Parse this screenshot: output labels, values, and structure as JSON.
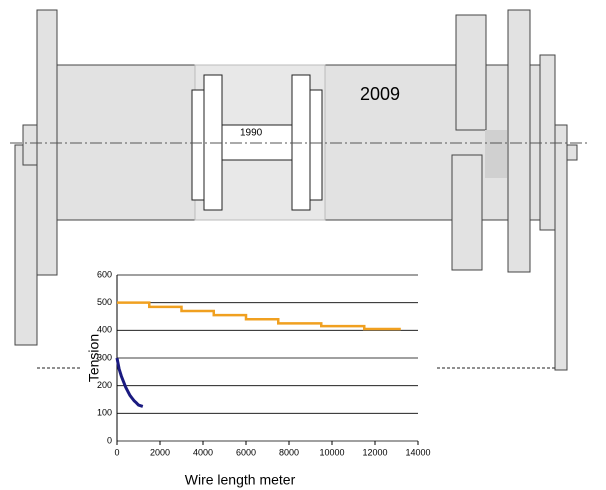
{
  "drawing": {
    "labels": [
      "2009",
      "1990"
    ]
  },
  "chart_data": {
    "type": "line",
    "x_label": "Wire length meter",
    "y_label": "Tension",
    "xlim": [
      0,
      14000
    ],
    "xticks": [
      0,
      2000,
      4000,
      6000,
      8000,
      10000,
      12000,
      14000
    ],
    "ylim": [
      0,
      600
    ],
    "yticks": [
      0,
      100,
      200,
      300,
      400,
      500,
      600
    ],
    "grid": true,
    "series": [
      {
        "color": "#f0a020",
        "x": [
          0,
          1500,
          1500,
          3000,
          3000,
          4500,
          4500,
          6000,
          6000,
          7500,
          7500,
          9500,
          9500,
          11500,
          11500,
          13200
        ],
        "values": [
          500,
          500,
          485,
          485,
          470,
          470,
          455,
          455,
          440,
          440,
          425,
          425,
          415,
          415,
          405,
          405
        ]
      },
      {
        "color": "#1a1a80",
        "x": [
          0,
          100,
          200,
          300,
          400,
          500,
          600,
          700,
          800,
          900,
          1000,
          1200
        ],
        "values": [
          300,
          260,
          235,
          215,
          195,
          180,
          165,
          155,
          145,
          138,
          130,
          125
        ]
      }
    ]
  }
}
